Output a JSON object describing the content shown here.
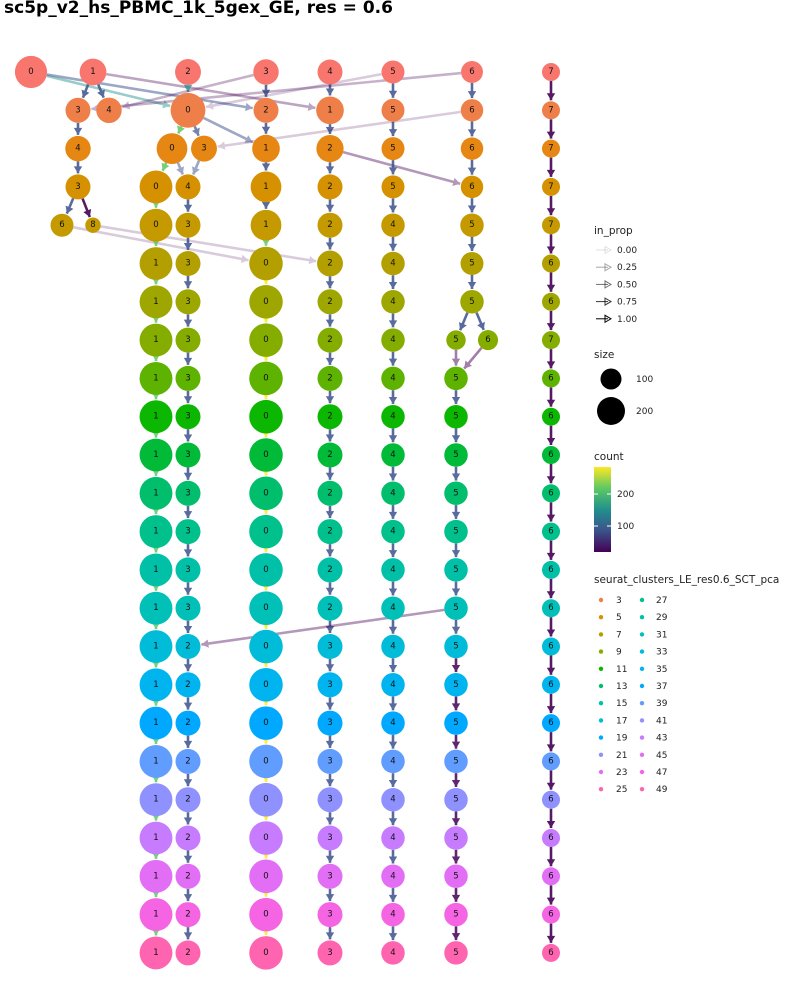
{
  "title": "sc5p_v2_hs_PBMC_1k_5gex_GE, res = 0.6",
  "legend": {
    "in_prop": {
      "title": "in_prop",
      "values": [
        "0.00",
        "0.25",
        "0.50",
        "0.75",
        "1.00"
      ]
    },
    "size": {
      "title": "size",
      "values": [
        "100",
        "200"
      ]
    },
    "count": {
      "title": "count",
      "ticks": [
        "200",
        "100"
      ]
    },
    "clusters": {
      "title": "seurat_clusters_LE_res0.6_SCT_pca",
      "col1": [
        "3",
        "5",
        "7",
        "9",
        "11",
        "13",
        "15",
        "17",
        "19",
        "21",
        "23",
        "25"
      ],
      "col2": [
        "27",
        "29",
        "31",
        "33",
        "35",
        "37",
        "39",
        "41",
        "43",
        "45",
        "47",
        "49"
      ]
    }
  },
  "colors": {
    "level_palette": [
      "#F8766D",
      "#EF7F48",
      "#E68613",
      "#D59100",
      "#C49A00",
      "#B3A000",
      "#9EA700",
      "#85AD00",
      "#5EB300",
      "#0CB702",
      "#00BA38",
      "#00BE6C",
      "#00C08B",
      "#00C1A7",
      "#00C0B8",
      "#00BCD8",
      "#00B4EF",
      "#00A9FF",
      "#619CFF",
      "#8F91FF",
      "#C77CFF",
      "#E36EF6",
      "#F564E3",
      "#FF64B0",
      "#FF6A98",
      "#FF6C91"
    ],
    "gradient_stops": [
      "#440154",
      "#3B528B",
      "#21908C",
      "#5DC863",
      "#FDE725"
    ]
  },
  "diagram": {
    "levels": 24,
    "columns": {
      "a": [
        1,
        1,
        1,
        1,
        1,
        1,
        1,
        1,
        1,
        1,
        1,
        1,
        1,
        1,
        1,
        1,
        1,
        1,
        1,
        1
      ],
      "b": [
        3,
        3,
        3,
        3,
        3,
        3,
        3,
        3,
        3,
        3,
        2,
        2,
        2,
        2,
        2,
        2,
        2,
        2,
        2,
        2,
        2
      ]
    },
    "nodes": [
      {
        "level": 1,
        "label": "0",
        "size": 190
      },
      {
        "level": 1,
        "label": "1",
        "size": 120
      },
      {
        "level": 1,
        "label": "2",
        "size": 110
      },
      {
        "level": 1,
        "label": "3",
        "size": 105
      },
      {
        "level": 1,
        "label": "4",
        "size": 100
      },
      {
        "level": 1,
        "label": "5",
        "size": 80
      },
      {
        "level": 1,
        "label": "6",
        "size": 70
      },
      {
        "level": 1,
        "label": "7",
        "size": 40
      },
      {
        "level": 2,
        "label": "3",
        "size": 100
      },
      {
        "level": 2,
        "label": "4",
        "size": 105
      },
      {
        "level": 2,
        "label": "0",
        "size": 230
      },
      {
        "level": 2,
        "label": "2",
        "size": 100
      },
      {
        "level": 2,
        "label": "1",
        "size": 130
      },
      {
        "level": 2,
        "label": "5",
        "size": 80
      },
      {
        "level": 2,
        "label": "6",
        "size": 75
      },
      {
        "level": 2,
        "label": "7",
        "size": 40
      },
      {
        "level": 3,
        "label": "4",
        "size": 105
      },
      {
        "level": 3,
        "label": "0",
        "size": 170
      },
      {
        "level": 3,
        "label": "3",
        "size": 110
      },
      {
        "level": 3,
        "label": "1",
        "size": 130
      },
      {
        "level": 3,
        "label": "2",
        "size": 125
      },
      {
        "level": 3,
        "label": "5",
        "size": 80
      },
      {
        "level": 3,
        "label": "6",
        "size": 75
      },
      {
        "level": 3,
        "label": "7",
        "size": 40
      },
      {
        "level": 4,
        "label": "3",
        "size": 100
      },
      {
        "level": 4,
        "label": "0",
        "size": 200
      },
      {
        "level": 4,
        "label": "4",
        "size": 100
      },
      {
        "level": 4,
        "label": "1",
        "size": 170
      },
      {
        "level": 4,
        "label": "2",
        "size": 100
      },
      {
        "level": 4,
        "label": "5",
        "size": 80
      },
      {
        "level": 4,
        "label": "6",
        "size": 75
      },
      {
        "level": 4,
        "label": "7",
        "size": 40
      },
      {
        "level": 5,
        "label": "6",
        "size": 80
      },
      {
        "level": 5,
        "label": "8",
        "size": 25
      },
      {
        "level": 5,
        "label": "0",
        "size": 200
      },
      {
        "level": 5,
        "label": "3",
        "size": 100
      },
      {
        "level": 5,
        "label": "1",
        "size": 170
      },
      {
        "level": 5,
        "label": "2",
        "size": 100
      },
      {
        "level": 5,
        "label": "4",
        "size": 85
      },
      {
        "level": 5,
        "label": "5",
        "size": 85
      },
      {
        "level": 5,
        "label": "7",
        "size": 40
      },
      {
        "level": 6,
        "label": "1",
        "size": 200
      },
      {
        "level": 6,
        "label": "3",
        "size": 100
      },
      {
        "level": 6,
        "label": "0",
        "size": 210
      },
      {
        "level": 6,
        "label": "2",
        "size": 110
      },
      {
        "level": 6,
        "label": "4",
        "size": 85
      },
      {
        "level": 6,
        "label": "5",
        "size": 80
      },
      {
        "level": 6,
        "label": "6",
        "size": 40
      },
      {
        "level": 7,
        "label": "1",
        "size": 200
      },
      {
        "level": 7,
        "label": "3",
        "size": 100
      },
      {
        "level": 7,
        "label": "0",
        "size": 210
      },
      {
        "level": 7,
        "label": "2",
        "size": 100
      },
      {
        "level": 7,
        "label": "4",
        "size": 85
      },
      {
        "level": 7,
        "label": "5",
        "size": 85
      },
      {
        "level": 7,
        "label": "6",
        "size": 40
      },
      {
        "level": 8,
        "label": "1",
        "size": 200
      },
      {
        "level": 8,
        "label": "3",
        "size": 100
      },
      {
        "level": 8,
        "label": "0",
        "size": 210
      },
      {
        "level": 8,
        "label": "2",
        "size": 100
      },
      {
        "level": 8,
        "label": "4",
        "size": 85
      },
      {
        "level": 8,
        "label": "5",
        "size": 50
      },
      {
        "level": 8,
        "label": "6",
        "size": 55
      },
      {
        "level": 8,
        "label": "7",
        "size": 40
      },
      {
        "level": 9,
        "label": "1",
        "size": 200
      },
      {
        "level": 9,
        "label": "3",
        "size": 100
      },
      {
        "level": 9,
        "label": "0",
        "size": 210
      },
      {
        "level": 9,
        "label": "2",
        "size": 100
      },
      {
        "level": 9,
        "label": "4",
        "size": 85
      },
      {
        "level": 9,
        "label": "5",
        "size": 85
      },
      {
        "level": 9,
        "label": "6",
        "size": 40
      },
      {
        "level": 10,
        "label": "1",
        "size": 200
      },
      {
        "level": 10,
        "label": "3",
        "size": 100
      },
      {
        "level": 10,
        "label": "0",
        "size": 210
      },
      {
        "level": 10,
        "label": "2",
        "size": 100
      },
      {
        "level": 10,
        "label": "4",
        "size": 85
      },
      {
        "level": 10,
        "label": "5",
        "size": 85
      },
      {
        "level": 10,
        "label": "6",
        "size": 40
      },
      {
        "level": 11,
        "label": "1",
        "size": 200
      },
      {
        "level": 11,
        "label": "3",
        "size": 100
      },
      {
        "level": 11,
        "label": "0",
        "size": 210
      },
      {
        "level": 11,
        "label": "2",
        "size": 100
      },
      {
        "level": 11,
        "label": "4",
        "size": 85
      },
      {
        "level": 11,
        "label": "5",
        "size": 85
      },
      {
        "level": 11,
        "label": "6",
        "size": 40
      },
      {
        "level": 12,
        "label": "1",
        "size": 200
      },
      {
        "level": 12,
        "label": "3",
        "size": 100
      },
      {
        "level": 12,
        "label": "0",
        "size": 210
      },
      {
        "level": 12,
        "label": "2",
        "size": 100
      },
      {
        "level": 12,
        "label": "4",
        "size": 85
      },
      {
        "level": 12,
        "label": "5",
        "size": 85
      },
      {
        "level": 12,
        "label": "6",
        "size": 40
      },
      {
        "level": 13,
        "label": "1",
        "size": 200
      },
      {
        "level": 13,
        "label": "3",
        "size": 100
      },
      {
        "level": 13,
        "label": "0",
        "size": 210
      },
      {
        "level": 13,
        "label": "2",
        "size": 100
      },
      {
        "level": 13,
        "label": "4",
        "size": 85
      },
      {
        "level": 13,
        "label": "5",
        "size": 85
      },
      {
        "level": 13,
        "label": "6",
        "size": 40
      },
      {
        "level": 14,
        "label": "1",
        "size": 200
      },
      {
        "level": 14,
        "label": "3",
        "size": 100
      },
      {
        "level": 14,
        "label": "0",
        "size": 210
      },
      {
        "level": 14,
        "label": "2",
        "size": 100
      },
      {
        "level": 14,
        "label": "4",
        "size": 85
      },
      {
        "level": 14,
        "label": "5",
        "size": 85
      },
      {
        "level": 14,
        "label": "6",
        "size": 40
      },
      {
        "level": 15,
        "label": "1",
        "size": 200
      },
      {
        "level": 15,
        "label": "3",
        "size": 100
      },
      {
        "level": 15,
        "label": "0",
        "size": 210
      },
      {
        "level": 15,
        "label": "2",
        "size": 100
      },
      {
        "level": 15,
        "label": "4",
        "size": 85
      },
      {
        "level": 15,
        "label": "5",
        "size": 85
      },
      {
        "level": 15,
        "label": "6",
        "size": 40
      },
      {
        "level": 16,
        "label": "1",
        "size": 200
      },
      {
        "level": 16,
        "label": "2",
        "size": 100
      },
      {
        "level": 16,
        "label": "0",
        "size": 210
      },
      {
        "level": 16,
        "label": "3",
        "size": 100
      },
      {
        "level": 16,
        "label": "4",
        "size": 85
      },
      {
        "level": 16,
        "label": "5",
        "size": 85
      },
      {
        "level": 16,
        "label": "6",
        "size": 40
      },
      {
        "level": 17,
        "label": "1",
        "size": 200
      },
      {
        "level": 17,
        "label": "2",
        "size": 100
      },
      {
        "level": 17,
        "label": "0",
        "size": 210
      },
      {
        "level": 17,
        "label": "3",
        "size": 100
      },
      {
        "level": 17,
        "label": "4",
        "size": 85
      },
      {
        "level": 17,
        "label": "5",
        "size": 85
      },
      {
        "level": 17,
        "label": "6",
        "size": 40
      },
      {
        "level": 18,
        "label": "1",
        "size": 200
      },
      {
        "level": 18,
        "label": "2",
        "size": 100
      },
      {
        "level": 18,
        "label": "0",
        "size": 210
      },
      {
        "level": 18,
        "label": "3",
        "size": 100
      },
      {
        "level": 18,
        "label": "4",
        "size": 85
      },
      {
        "level": 18,
        "label": "5",
        "size": 85
      },
      {
        "level": 18,
        "label": "6",
        "size": 40
      },
      {
        "level": 19,
        "label": "1",
        "size": 200
      },
      {
        "level": 19,
        "label": "2",
        "size": 100
      },
      {
        "level": 19,
        "label": "0",
        "size": 210
      },
      {
        "level": 19,
        "label": "3",
        "size": 100
      },
      {
        "level": 19,
        "label": "4",
        "size": 85
      },
      {
        "level": 19,
        "label": "5",
        "size": 85
      },
      {
        "level": 19,
        "label": "6",
        "size": 40
      },
      {
        "level": 20,
        "label": "1",
        "size": 200
      },
      {
        "level": 20,
        "label": "2",
        "size": 100
      },
      {
        "level": 20,
        "label": "0",
        "size": 210
      },
      {
        "level": 20,
        "label": "3",
        "size": 100
      },
      {
        "level": 20,
        "label": "4",
        "size": 85
      },
      {
        "level": 20,
        "label": "5",
        "size": 85
      },
      {
        "level": 20,
        "label": "6",
        "size": 40
      },
      {
        "level": 21,
        "label": "1",
        "size": 200
      },
      {
        "level": 21,
        "label": "2",
        "size": 100
      },
      {
        "level": 21,
        "label": "0",
        "size": 210
      },
      {
        "level": 21,
        "label": "3",
        "size": 100
      },
      {
        "level": 21,
        "label": "4",
        "size": 85
      },
      {
        "level": 21,
        "label": "5",
        "size": 85
      },
      {
        "level": 21,
        "label": "6",
        "size": 40
      },
      {
        "level": 22,
        "label": "1",
        "size": 200
      },
      {
        "level": 22,
        "label": "2",
        "size": 100
      },
      {
        "level": 22,
        "label": "0",
        "size": 210
      },
      {
        "level": 22,
        "label": "3",
        "size": 100
      },
      {
        "level": 22,
        "label": "4",
        "size": 85
      },
      {
        "level": 22,
        "label": "5",
        "size": 85
      },
      {
        "level": 22,
        "label": "6",
        "size": 40
      },
      {
        "level": 23,
        "label": "1",
        "size": 200
      },
      {
        "level": 23,
        "label": "2",
        "size": 100
      },
      {
        "level": 23,
        "label": "0",
        "size": 210
      },
      {
        "level": 23,
        "label": "3",
        "size": 100
      },
      {
        "level": 23,
        "label": "4",
        "size": 85
      },
      {
        "level": 23,
        "label": "5",
        "size": 85
      },
      {
        "level": 23,
        "label": "6",
        "size": 40
      },
      {
        "level": 24,
        "label": "1",
        "size": 200
      },
      {
        "level": 24,
        "label": "2",
        "size": 100
      },
      {
        "level": 24,
        "label": "0",
        "size": 210
      },
      {
        "level": 24,
        "label": "3",
        "size": 100
      },
      {
        "level": 24,
        "label": "4",
        "size": 85
      },
      {
        "level": 24,
        "label": "5",
        "size": 85
      },
      {
        "level": 24,
        "label": "6",
        "size": 40
      }
    ]
  }
}
